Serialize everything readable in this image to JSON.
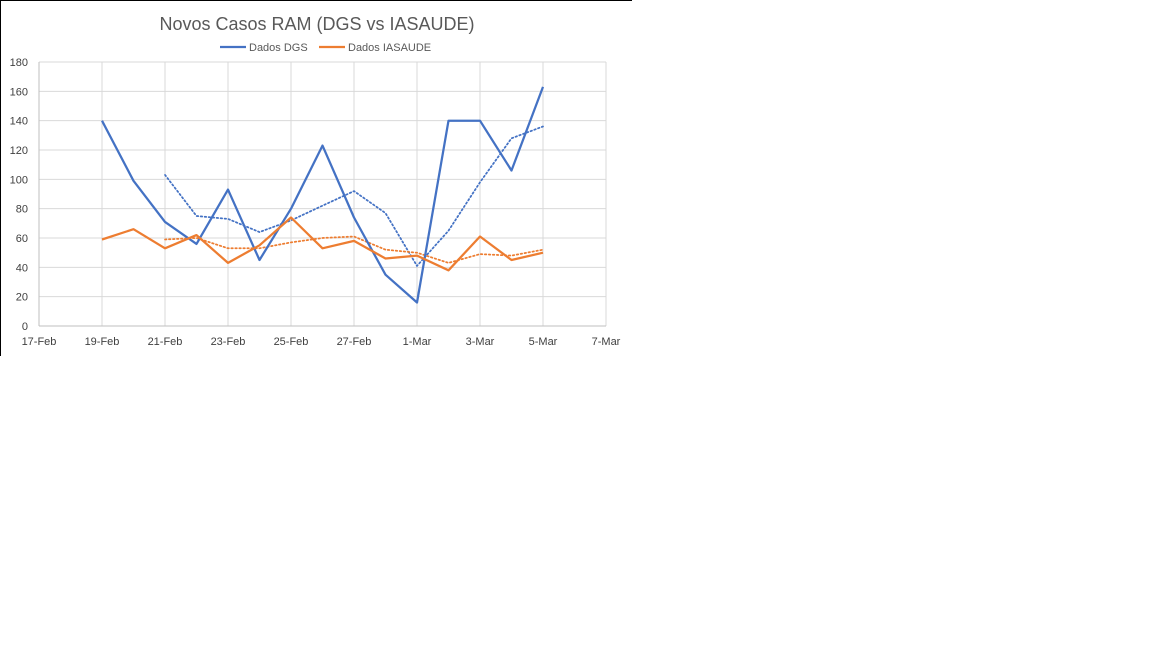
{
  "chart_data": {
    "type": "line",
    "title": "Novos Casos RAM (DGS vs IASAUDE)",
    "xlabel": "",
    "ylabel": "",
    "x_ticks": [
      "17-Feb",
      "19-Feb",
      "21-Feb",
      "23-Feb",
      "25-Feb",
      "27-Feb",
      "1-Mar",
      "3-Mar",
      "5-Mar",
      "7-Mar"
    ],
    "xlim": [
      "17-Feb",
      "7-Mar"
    ],
    "ylim": [
      0,
      180
    ],
    "y_ticks": [
      "0",
      "20",
      "40",
      "60",
      "80",
      "100",
      "120",
      "140",
      "160",
      "180"
    ],
    "grid": true,
    "legend_position": "top",
    "x": [
      "19-Feb",
      "20-Feb",
      "21-Feb",
      "22-Feb",
      "23-Feb",
      "24-Feb",
      "25-Feb",
      "26-Feb",
      "27-Feb",
      "28-Feb",
      "1-Mar",
      "2-Mar",
      "3-Mar",
      "4-Mar",
      "5-Mar"
    ],
    "series": [
      {
        "name": "Dados DGS",
        "color": "#4472C4",
        "style": "solid",
        "values": [
          140,
          99,
          71,
          56,
          93,
          45,
          80,
          123,
          74,
          35,
          16,
          140,
          140,
          106,
          163
        ]
      },
      {
        "name": "Dados IASAUDE",
        "color": "#ED7D31",
        "style": "solid",
        "values": [
          59,
          66,
          53,
          62,
          43,
          55,
          74,
          53,
          58,
          46,
          48,
          38,
          61,
          45,
          50
        ]
      }
    ],
    "trendlines": [
      {
        "of": "Dados DGS",
        "kind": "moving average",
        "color": "#4472C4",
        "style": "dotted",
        "values": [
          null,
          null,
          103,
          75,
          73,
          64,
          72,
          82,
          92,
          77,
          41,
          65,
          98,
          128,
          136
        ]
      },
      {
        "of": "Dados IASAUDE",
        "kind": "moving average",
        "color": "#ED7D31",
        "style": "dotted",
        "values": [
          null,
          null,
          59,
          60,
          53,
          53,
          57,
          60,
          61,
          52,
          50,
          43,
          49,
          48,
          52
        ]
      }
    ]
  }
}
